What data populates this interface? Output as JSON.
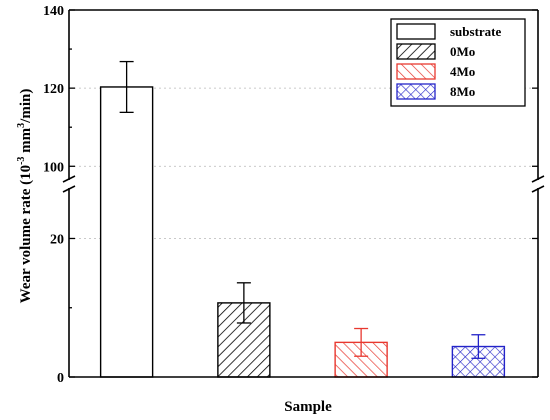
{
  "chart_data": {
    "type": "bar",
    "xlabel": "Sample",
    "ylabel": "Wear volume rate (10",
    "ylabel_exponent": "-3",
    "ylabel_suffix": " mm",
    "ylabel_suffix_exponent": "3",
    "ylabel_tail": "/min)",
    "axis_break": [
      27,
      97
    ],
    "ylim": [
      0,
      140
    ],
    "yticks": [
      0,
      20,
      100,
      120,
      140
    ],
    "grid": "horizontal dotted",
    "legend_position": "top-right",
    "series": [
      {
        "name": "substrate",
        "value": 120.3,
        "error": 6.5,
        "color": "#000000",
        "pattern": "none"
      },
      {
        "name": "0Mo",
        "value": 10.7,
        "error": 2.9,
        "color": "#000000",
        "pattern": "diagonal"
      },
      {
        "name": "4Mo",
        "value": 5.0,
        "error": 2.0,
        "color": "#e8382f",
        "pattern": "diagonal"
      },
      {
        "name": "8Mo",
        "value": 4.4,
        "error": 1.7,
        "color": "#2323c8",
        "pattern": "crosshatch"
      }
    ]
  }
}
